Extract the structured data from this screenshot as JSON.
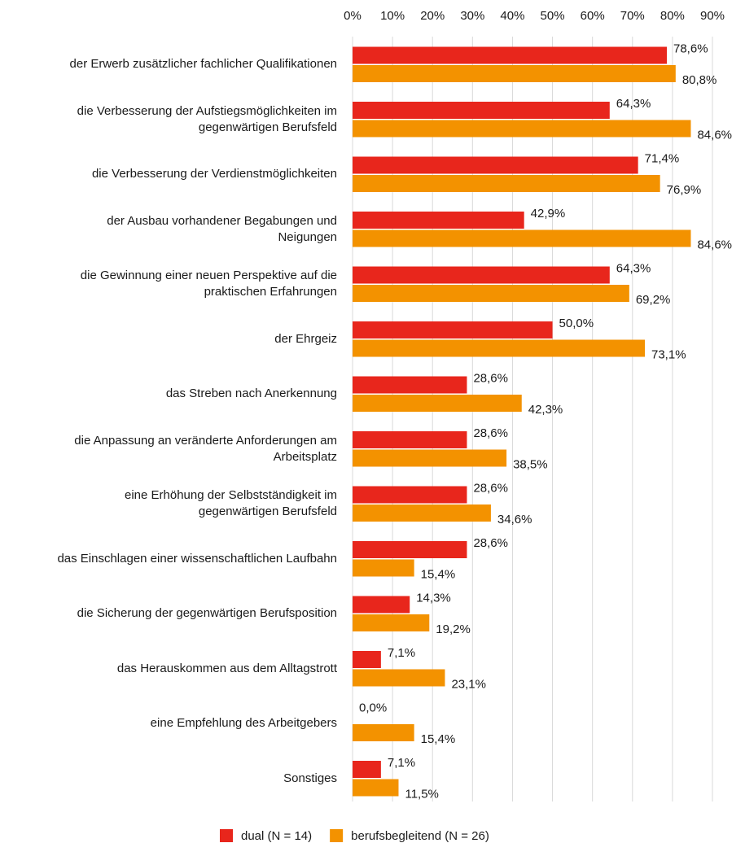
{
  "chart_data": {
    "type": "barh",
    "categories": [
      "der Erwerb zusätzlicher fachlicher Qualifikationen",
      "die Verbesserung der Aufstiegsmöglichkeiten im\ngegenwärtigen Berufsfeld",
      "die Verbesserung der Verdienstmöglichkeiten",
      "der Ausbau vorhandener Begabungen und\nNeigungen",
      "die Gewinnung einer neuen Perspektive auf die\npraktischen Erfahrungen",
      "der Ehrgeiz",
      "das Streben nach Anerkennung",
      "die Anpassung an veränderte Anforderungen am\nArbeitsplatz",
      "eine Erhöhung der Selbstständigkeit im\ngegenwärtigen Berufsfeld",
      "das Einschlagen einer wissenschaftlichen Laufbahn",
      "die Sicherung der gegenwärtigen Berufsposition",
      "das Herauskommen aus dem Alltagstrott",
      "eine Empfehlung des Arbeitgebers",
      "Sonstiges"
    ],
    "series": [
      {
        "name": "dual (N = 14)",
        "color": "#e8261c",
        "values": [
          78.6,
          64.3,
          71.4,
          42.9,
          64.3,
          50.0,
          28.6,
          28.6,
          28.6,
          28.6,
          14.3,
          7.1,
          0.0,
          7.1
        ],
        "value_labels": [
          "78,6%",
          "64,3%",
          "71,4%",
          "42,9%",
          "64,3%",
          "50,0%",
          "28,6%",
          "28,6%",
          "28,6%",
          "28,6%",
          "14,3%",
          "7,1%",
          "0,0%",
          "7,1%"
        ]
      },
      {
        "name": "berufsbegleitend (N = 26)",
        "color": "#f39200",
        "values": [
          80.8,
          84.6,
          76.9,
          84.6,
          69.2,
          73.1,
          42.3,
          38.5,
          34.6,
          15.4,
          19.2,
          23.1,
          15.4,
          11.5
        ],
        "value_labels": [
          "80,8%",
          "84,6%",
          "76,9%",
          "84,6%",
          "69,2%",
          "73,1%",
          "42,3%",
          "38,5%",
          "34,6%",
          "15,4%",
          "19,2%",
          "23,1%",
          "15,4%",
          "11,5%"
        ]
      }
    ],
    "xlim": [
      0,
      90
    ],
    "xticks": [
      {
        "value": 0,
        "label": "0%"
      },
      {
        "value": 10,
        "label": "10%"
      },
      {
        "value": 20,
        "label": "20%"
      },
      {
        "value": 30,
        "label": "30%"
      },
      {
        "value": 40,
        "label": "40%"
      },
      {
        "value": 50,
        "label": "50%"
      },
      {
        "value": 60,
        "label": "60%"
      },
      {
        "value": 70,
        "label": "70%"
      },
      {
        "value": 80,
        "label": "80%"
      },
      {
        "value": 90,
        "label": "90%"
      }
    ],
    "grid": true,
    "legend": "bottom"
  }
}
